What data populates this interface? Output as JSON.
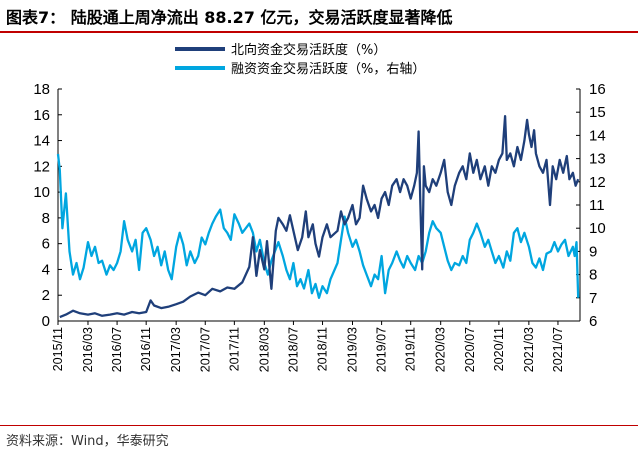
{
  "header": {
    "title": "图表7： 陆股通上周净流出 88.27 亿元，交易活跃度显著降低"
  },
  "footer": {
    "source": "资料来源：Wind，华泰研究"
  },
  "colors": {
    "north": "#1f3f7a",
    "margin": "#00a6e0",
    "title_rule": "#c00000"
  },
  "chart_data": {
    "type": "line",
    "title": "",
    "legend_position": "top-right",
    "y_left": {
      "min": 0,
      "max": 18,
      "step": 2,
      "ticks": [
        "0",
        "2",
        "4",
        "6",
        "8",
        "10",
        "12",
        "14",
        "16",
        "18"
      ]
    },
    "y_right": {
      "min": 6,
      "max": 16,
      "step": 1,
      "ticks": [
        "6",
        "7",
        "8",
        "9",
        "10",
        "11",
        "12",
        "13",
        "14",
        "15",
        "16"
      ]
    },
    "x_range": [
      2015.83,
      2021.75
    ],
    "x_ticks": [
      {
        "label": "2015/11",
        "t": 2015.83
      },
      {
        "label": "2016/03",
        "t": 2016.17
      },
      {
        "label": "2016/07",
        "t": 2016.5
      },
      {
        "label": "2016/11",
        "t": 2016.83
      },
      {
        "label": "2017/03",
        "t": 2017.17
      },
      {
        "label": "2017/07",
        "t": 2017.5
      },
      {
        "label": "2017/11",
        "t": 2017.83
      },
      {
        "label": "2018/03",
        "t": 2018.17
      },
      {
        "label": "2018/07",
        "t": 2018.5
      },
      {
        "label": "2018/11",
        "t": 2018.83
      },
      {
        "label": "2019/03",
        "t": 2019.17
      },
      {
        "label": "2019/07",
        "t": 2019.5
      },
      {
        "label": "2019/11",
        "t": 2019.83
      },
      {
        "label": "2020/03",
        "t": 2020.17
      },
      {
        "label": "2020/07",
        "t": 2020.5
      },
      {
        "label": "2020/11",
        "t": 2020.83
      },
      {
        "label": "2021/03",
        "t": 2021.17
      },
      {
        "label": "2021/07",
        "t": 2021.5
      }
    ],
    "series": [
      {
        "name": "北向资金交易活跃度（%）",
        "axis": "left",
        "points": [
          [
            2015.85,
            0.3
          ],
          [
            2015.92,
            0.5
          ],
          [
            2016.0,
            0.8
          ],
          [
            2016.08,
            0.6
          ],
          [
            2016.17,
            0.5
          ],
          [
            2016.25,
            0.6
          ],
          [
            2016.33,
            0.4
          ],
          [
            2016.42,
            0.5
          ],
          [
            2016.5,
            0.6
          ],
          [
            2016.58,
            0.5
          ],
          [
            2016.67,
            0.7
          ],
          [
            2016.75,
            0.6
          ],
          [
            2016.83,
            0.7
          ],
          [
            2016.88,
            1.6
          ],
          [
            2016.92,
            1.2
          ],
          [
            2017.0,
            1.0
          ],
          [
            2017.08,
            1.1
          ],
          [
            2017.17,
            1.3
          ],
          [
            2017.25,
            1.5
          ],
          [
            2017.33,
            1.9
          ],
          [
            2017.42,
            2.2
          ],
          [
            2017.5,
            2.0
          ],
          [
            2017.58,
            2.5
          ],
          [
            2017.67,
            2.3
          ],
          [
            2017.75,
            2.6
          ],
          [
            2017.83,
            2.5
          ],
          [
            2017.92,
            3.0
          ],
          [
            2018.0,
            4.2
          ],
          [
            2018.04,
            6.5
          ],
          [
            2018.08,
            3.5
          ],
          [
            2018.12,
            5.5
          ],
          [
            2018.17,
            4.0
          ],
          [
            2018.2,
            6.2
          ],
          [
            2018.25,
            2.5
          ],
          [
            2018.3,
            7.0
          ],
          [
            2018.33,
            8.0
          ],
          [
            2018.38,
            7.5
          ],
          [
            2018.42,
            7.0
          ],
          [
            2018.46,
            8.2
          ],
          [
            2018.5,
            7.0
          ],
          [
            2018.55,
            5.5
          ],
          [
            2018.6,
            6.5
          ],
          [
            2018.64,
            8.5
          ],
          [
            2018.67,
            6.5
          ],
          [
            2018.72,
            7.5
          ],
          [
            2018.75,
            6.0
          ],
          [
            2018.79,
            5.0
          ],
          [
            2018.83,
            6.5
          ],
          [
            2018.88,
            7.5
          ],
          [
            2018.92,
            6.5
          ],
          [
            2019.0,
            7.0
          ],
          [
            2019.04,
            8.5
          ],
          [
            2019.08,
            7.5
          ],
          [
            2019.12,
            8.0
          ],
          [
            2019.17,
            9.0
          ],
          [
            2019.21,
            7.5
          ],
          [
            2019.25,
            8.0
          ],
          [
            2019.29,
            10.5
          ],
          [
            2019.33,
            9.5
          ],
          [
            2019.38,
            8.5
          ],
          [
            2019.42,
            9.0
          ],
          [
            2019.46,
            8.0
          ],
          [
            2019.5,
            9.5
          ],
          [
            2019.54,
            10.0
          ],
          [
            2019.58,
            9.0
          ],
          [
            2019.62,
            10.5
          ],
          [
            2019.67,
            11.0
          ],
          [
            2019.71,
            10.0
          ],
          [
            2019.75,
            11.0
          ],
          [
            2019.79,
            10.5
          ],
          [
            2019.83,
            9.5
          ],
          [
            2019.87,
            10.5
          ],
          [
            2019.9,
            11.5
          ],
          [
            2019.92,
            14.7
          ],
          [
            2019.94,
            9.0
          ],
          [
            2019.96,
            4.0
          ],
          [
            2019.98,
            12.0
          ],
          [
            2020.0,
            10.5
          ],
          [
            2020.04,
            10.0
          ],
          [
            2020.08,
            11.0
          ],
          [
            2020.12,
            10.5
          ],
          [
            2020.17,
            11.5
          ],
          [
            2020.21,
            12.5
          ],
          [
            2020.25,
            10.0
          ],
          [
            2020.29,
            9.0
          ],
          [
            2020.33,
            10.5
          ],
          [
            2020.38,
            11.5
          ],
          [
            2020.42,
            12.0
          ],
          [
            2020.46,
            11.0
          ],
          [
            2020.5,
            13.0
          ],
          [
            2020.54,
            11.5
          ],
          [
            2020.58,
            12.5
          ],
          [
            2020.62,
            11.0
          ],
          [
            2020.67,
            12.0
          ],
          [
            2020.71,
            10.5
          ],
          [
            2020.75,
            12.0
          ],
          [
            2020.79,
            11.5
          ],
          [
            2020.83,
            12.5
          ],
          [
            2020.87,
            13.0
          ],
          [
            2020.9,
            15.9
          ],
          [
            2020.92,
            12.5
          ],
          [
            2020.96,
            13.0
          ],
          [
            2021.0,
            12.0
          ],
          [
            2021.04,
            13.5
          ],
          [
            2021.08,
            12.5
          ],
          [
            2021.12,
            14.0
          ],
          [
            2021.15,
            15.6
          ],
          [
            2021.17,
            14.5
          ],
          [
            2021.2,
            13.5
          ],
          [
            2021.23,
            14.8
          ],
          [
            2021.25,
            13.0
          ],
          [
            2021.29,
            12.0
          ],
          [
            2021.33,
            11.5
          ],
          [
            2021.37,
            12.5
          ],
          [
            2021.41,
            9.0
          ],
          [
            2021.44,
            12.0
          ],
          [
            2021.48,
            11.0
          ],
          [
            2021.52,
            12.5
          ],
          [
            2021.56,
            11.5
          ],
          [
            2021.6,
            12.8
          ],
          [
            2021.63,
            11.0
          ],
          [
            2021.67,
            11.5
          ],
          [
            2021.7,
            10.5
          ],
          [
            2021.73,
            11.0
          ]
        ]
      },
      {
        "name": "融资资金交易活跃度（%，右轴）",
        "axis": "right",
        "points": [
          [
            2015.83,
            13.2
          ],
          [
            2015.85,
            12.5
          ],
          [
            2015.88,
            10.0
          ],
          [
            2015.92,
            11.5
          ],
          [
            2015.96,
            9.0
          ],
          [
            2016.0,
            8.0
          ],
          [
            2016.04,
            8.5
          ],
          [
            2016.08,
            7.8
          ],
          [
            2016.12,
            8.3
          ],
          [
            2016.17,
            9.4
          ],
          [
            2016.21,
            8.8
          ],
          [
            2016.25,
            9.2
          ],
          [
            2016.29,
            8.5
          ],
          [
            2016.33,
            8.6
          ],
          [
            2016.38,
            8.0
          ],
          [
            2016.42,
            8.4
          ],
          [
            2016.46,
            8.2
          ],
          [
            2016.5,
            8.5
          ],
          [
            2016.54,
            9.0
          ],
          [
            2016.58,
            10.3
          ],
          [
            2016.62,
            9.5
          ],
          [
            2016.67,
            9.0
          ],
          [
            2016.71,
            9.5
          ],
          [
            2016.75,
            8.2
          ],
          [
            2016.79,
            9.8
          ],
          [
            2016.83,
            10.0
          ],
          [
            2016.88,
            9.5
          ],
          [
            2016.92,
            8.8
          ],
          [
            2016.96,
            9.2
          ],
          [
            2017.0,
            8.4
          ],
          [
            2017.04,
            9.0
          ],
          [
            2017.08,
            8.2
          ],
          [
            2017.12,
            7.8
          ],
          [
            2017.17,
            9.2
          ],
          [
            2017.21,
            9.8
          ],
          [
            2017.25,
            9.3
          ],
          [
            2017.29,
            8.4
          ],
          [
            2017.33,
            9.0
          ],
          [
            2017.38,
            8.5
          ],
          [
            2017.42,
            8.8
          ],
          [
            2017.46,
            9.6
          ],
          [
            2017.5,
            9.3
          ],
          [
            2017.54,
            9.8
          ],
          [
            2017.58,
            10.2
          ],
          [
            2017.62,
            10.5
          ],
          [
            2017.67,
            10.8
          ],
          [
            2017.71,
            10.0
          ],
          [
            2017.75,
            9.8
          ],
          [
            2017.79,
            9.5
          ],
          [
            2017.83,
            10.6
          ],
          [
            2017.88,
            10.2
          ],
          [
            2017.92,
            9.8
          ],
          [
            2018.0,
            10.2
          ],
          [
            2018.04,
            9.8
          ],
          [
            2018.08,
            9.0
          ],
          [
            2018.12,
            9.5
          ],
          [
            2018.17,
            8.5
          ],
          [
            2018.21,
            8.0
          ],
          [
            2018.25,
            8.6
          ],
          [
            2018.29,
            9.0
          ],
          [
            2018.33,
            9.4
          ],
          [
            2018.38,
            8.8
          ],
          [
            2018.42,
            8.2
          ],
          [
            2018.46,
            7.8
          ],
          [
            2018.5,
            8.5
          ],
          [
            2018.54,
            7.5
          ],
          [
            2018.58,
            7.8
          ],
          [
            2018.62,
            7.4
          ],
          [
            2018.67,
            8.2
          ],
          [
            2018.71,
            7.2
          ],
          [
            2018.75,
            7.6
          ],
          [
            2018.79,
            7.0
          ],
          [
            2018.83,
            7.5
          ],
          [
            2018.88,
            7.2
          ],
          [
            2018.92,
            7.8
          ],
          [
            2019.0,
            8.5
          ],
          [
            2019.04,
            9.5
          ],
          [
            2019.08,
            10.5
          ],
          [
            2019.12,
            9.8
          ],
          [
            2019.17,
            9.2
          ],
          [
            2019.21,
            9.5
          ],
          [
            2019.25,
            9.0
          ],
          [
            2019.29,
            8.4
          ],
          [
            2019.33,
            8.0
          ],
          [
            2019.38,
            7.5
          ],
          [
            2019.42,
            8.0
          ],
          [
            2019.46,
            7.8
          ],
          [
            2019.5,
            8.8
          ],
          [
            2019.54,
            7.2
          ],
          [
            2019.58,
            8.2
          ],
          [
            2019.62,
            8.5
          ],
          [
            2019.67,
            9.0
          ],
          [
            2019.71,
            8.6
          ],
          [
            2019.75,
            8.3
          ],
          [
            2019.79,
            8.8
          ],
          [
            2019.83,
            8.5
          ],
          [
            2019.88,
            8.2
          ],
          [
            2019.92,
            8.8
          ],
          [
            2019.96,
            8.5
          ],
          [
            2020.0,
            9.0
          ],
          [
            2020.04,
            9.8
          ],
          [
            2020.08,
            10.3
          ],
          [
            2020.12,
            10.0
          ],
          [
            2020.17,
            9.8
          ],
          [
            2020.21,
            9.2
          ],
          [
            2020.25,
            8.6
          ],
          [
            2020.29,
            8.2
          ],
          [
            2020.33,
            8.5
          ],
          [
            2020.38,
            8.4
          ],
          [
            2020.42,
            8.8
          ],
          [
            2020.46,
            8.5
          ],
          [
            2020.5,
            9.5
          ],
          [
            2020.54,
            9.8
          ],
          [
            2020.58,
            10.2
          ],
          [
            2020.62,
            9.8
          ],
          [
            2020.67,
            9.2
          ],
          [
            2020.71,
            9.5
          ],
          [
            2020.75,
            9.0
          ],
          [
            2020.79,
            8.5
          ],
          [
            2020.83,
            8.8
          ],
          [
            2020.88,
            8.3
          ],
          [
            2020.92,
            9.0
          ],
          [
            2020.96,
            8.6
          ],
          [
            2021.0,
            9.8
          ],
          [
            2021.04,
            10.0
          ],
          [
            2021.08,
            9.4
          ],
          [
            2021.12,
            9.8
          ],
          [
            2021.17,
            9.2
          ],
          [
            2021.21,
            8.5
          ],
          [
            2021.25,
            8.3
          ],
          [
            2021.29,
            8.7
          ],
          [
            2021.33,
            8.2
          ],
          [
            2021.37,
            8.9
          ],
          [
            2021.42,
            9.0
          ],
          [
            2021.46,
            9.4
          ],
          [
            2021.5,
            9.0
          ],
          [
            2021.54,
            9.3
          ],
          [
            2021.58,
            9.5
          ],
          [
            2021.62,
            8.8
          ],
          [
            2021.67,
            9.2
          ],
          [
            2021.69,
            8.8
          ],
          [
            2021.71,
            9.4
          ],
          [
            2021.73,
            7.0
          ]
        ]
      }
    ]
  }
}
